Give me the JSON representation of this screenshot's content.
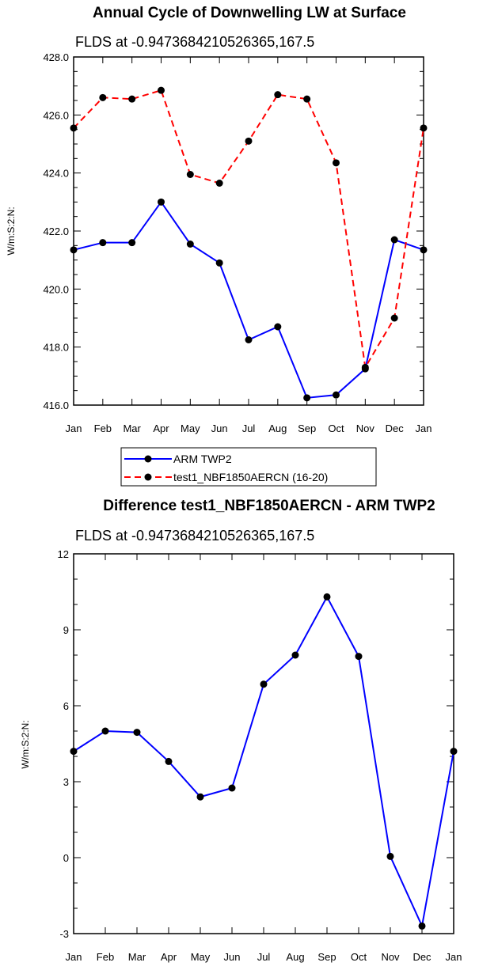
{
  "chart_data": [
    {
      "type": "line",
      "title": "Annual Cycle of Downwelling LW at Surface",
      "subtitle": "FLDS at -0.9473684210526365,167.5",
      "ylabel": "W/m:S:2:N:",
      "xlabel": "",
      "categories": [
        "Jan",
        "Feb",
        "Mar",
        "Apr",
        "May",
        "Jun",
        "Jul",
        "Aug",
        "Sep",
        "Oct",
        "Nov",
        "Dec",
        "Jan"
      ],
      "ylim": [
        416,
        428
      ],
      "yticks": [
        "416.0",
        "418.0",
        "420.0",
        "422.0",
        "424.0",
        "426.0",
        "428.0"
      ],
      "ytick_values": [
        416,
        418,
        420,
        422,
        424,
        426,
        428
      ],
      "series": [
        {
          "name": "ARM TWP2",
          "color": "#0000ff",
          "dash": "solid",
          "values": [
            421.35,
            421.6,
            421.6,
            423.0,
            421.55,
            420.9,
            418.25,
            418.7,
            416.25,
            416.35,
            417.25,
            421.7,
            421.35
          ]
        },
        {
          "name": "test1_NBF1850AERCN (16-20)",
          "color": "#ff0000",
          "dash": "dashed",
          "values": [
            425.55,
            426.6,
            426.55,
            426.85,
            423.95,
            423.65,
            425.1,
            426.7,
            426.55,
            424.35,
            417.3,
            419.0,
            425.55
          ]
        }
      ],
      "legend": "bottom"
    },
    {
      "type": "line",
      "title": "Difference test1_NBF1850AERCN - ARM TWP2",
      "subtitle": "FLDS at -0.9473684210526365,167.5",
      "ylabel": "W/m:S:2:N:",
      "xlabel": "",
      "categories": [
        "Jan",
        "Feb",
        "Mar",
        "Apr",
        "May",
        "Jun",
        "Jul",
        "Aug",
        "Sep",
        "Oct",
        "Nov",
        "Dec",
        "Jan"
      ],
      "ylim": [
        -3,
        12
      ],
      "yticks": [
        "-3",
        "0",
        "3",
        "6",
        "9",
        "12"
      ],
      "ytick_values": [
        -3,
        0,
        3,
        6,
        9,
        12
      ],
      "series": [
        {
          "name": "Difference",
          "color": "#0000ff",
          "dash": "solid",
          "values": [
            4.2,
            5.0,
            4.95,
            3.8,
            2.4,
            2.75,
            6.85,
            8.0,
            10.3,
            7.95,
            0.05,
            -2.7,
            4.2
          ]
        }
      ]
    }
  ]
}
